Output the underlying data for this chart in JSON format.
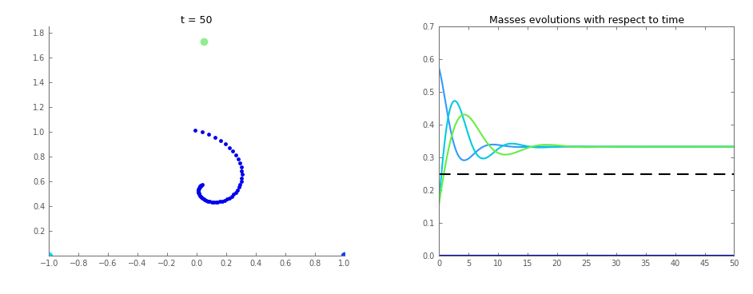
{
  "title_left": "t = 50",
  "title_right": "Masses evolutions with respect to time",
  "left_xlim": [
    -1,
    1
  ],
  "left_ylim": [
    0,
    1.85
  ],
  "left_xticks": [
    -1.0,
    -0.8,
    -0.6,
    -0.4,
    -0.2,
    0.0,
    0.2,
    0.4,
    0.6,
    0.8,
    1.0
  ],
  "left_yticks": [
    0.2,
    0.4,
    0.6,
    0.8,
    1.0,
    1.2,
    1.4,
    1.6,
    1.8
  ],
  "right_xlim": [
    0,
    50
  ],
  "right_ylim": [
    0,
    0.7
  ],
  "right_xticks": [
    0,
    5,
    10,
    15,
    20,
    25,
    30,
    35,
    40,
    45,
    50
  ],
  "right_yticks": [
    0.0,
    0.1,
    0.2,
    0.3,
    0.4,
    0.5,
    0.6,
    0.7
  ],
  "dashed_line_y": 0.25,
  "steady_state": 0.333,
  "point_cyan": [
    -1.0,
    0.0
  ],
  "point_blue": [
    1.0,
    0.0
  ],
  "point_green": [
    0.05,
    1.73
  ],
  "spiral_color": "#0000EE",
  "cyan_color": "#00E5FF",
  "blue_color": "#1040FF",
  "green_dot_color": "#90EE90",
  "line_blue_color": "#3399FF",
  "line_cyan_color": "#00CCDD",
  "line_green_color": "#66EE44",
  "line_darkblue_color": "#0000AA"
}
